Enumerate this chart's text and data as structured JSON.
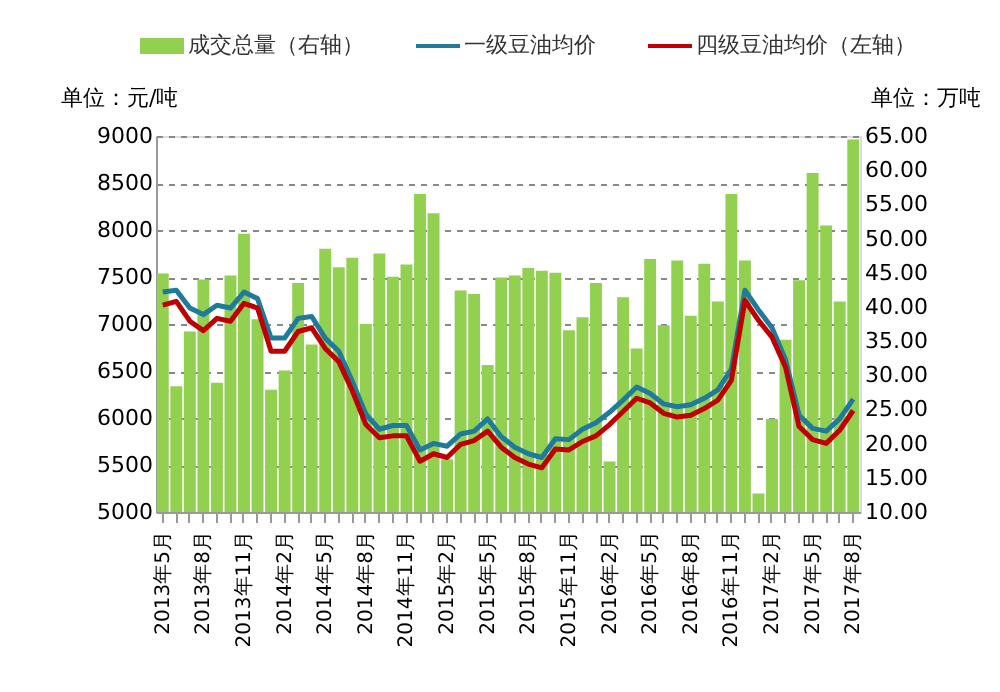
{
  "chart_data": {
    "type": "bar",
    "categories": [
      "2013年5月",
      null,
      null,
      "2013年8月",
      null,
      null,
      "2013年11月",
      null,
      null,
      "2014年2月",
      null,
      null,
      "2014年5月",
      null,
      null,
      "2014年8月",
      null,
      null,
      "2014年11月",
      null,
      null,
      "2015年2月",
      null,
      null,
      "2015年5月",
      null,
      null,
      "2015年8月",
      null,
      null,
      "2015年11月",
      null,
      null,
      "2016年2月",
      null,
      null,
      "2016年5月",
      null,
      null,
      "2016年8月",
      null,
      null,
      "2016年11月",
      null,
      null,
      "2017年2月",
      null,
      null,
      "2017年5月",
      null,
      null,
      "2017年8月"
    ],
    "series": [
      {
        "name": "成交总量（右轴）",
        "axis": "y2",
        "color": "#92d050",
        "values": [
          44.9,
          28.4,
          36.4,
          44.0,
          28.9,
          44.6,
          50.7,
          38.2,
          27.9,
          30.7,
          43.5,
          34.5,
          48.5,
          45.8,
          47.2,
          37.5,
          47.8,
          44.4,
          46.2,
          56.5,
          53.7,
          17.7,
          42.4,
          41.9,
          31.5,
          44.3,
          44.6,
          45.7,
          45.3,
          45.0,
          36.6,
          38.5,
          43.5,
          17.4,
          41.4,
          33.9,
          47.0,
          37.3,
          46.8,
          38.7,
          46.3,
          40.8,
          56.5,
          46.8,
          12.7,
          23.6,
          35.2,
          43.9,
          59.6,
          51.9,
          40.8,
          64.5
        ]
      },
      {
        "name": "一级豆油均价",
        "type": "line",
        "axis": "y",
        "color": "#1f7a9c",
        "values": [
          7340,
          7360,
          7170,
          7100,
          7200,
          7170,
          7340,
          7270,
          6850,
          6850,
          7060,
          7080,
          6850,
          6710,
          6390,
          6040,
          5880,
          5920,
          5920,
          5660,
          5730,
          5700,
          5830,
          5860,
          5990,
          5800,
          5690,
          5620,
          5580,
          5780,
          5770,
          5880,
          5950,
          6060,
          6190,
          6330,
          6260,
          6150,
          6120,
          6140,
          6210,
          6300,
          6520,
          7360,
          7150,
          6960,
          6620,
          6030,
          5890,
          5860,
          5990,
          6200
        ]
      },
      {
        "name": "四级豆油均价（左轴）",
        "type": "line",
        "axis": "y",
        "color": "#c00000",
        "values": [
          7200,
          7240,
          7030,
          6930,
          7060,
          7030,
          7220,
          7170,
          6710,
          6710,
          6920,
          6960,
          6740,
          6600,
          6290,
          5930,
          5790,
          5810,
          5810,
          5540,
          5620,
          5580,
          5720,
          5760,
          5860,
          5690,
          5580,
          5510,
          5470,
          5670,
          5660,
          5750,
          5810,
          5930,
          6070,
          6210,
          6160,
          6050,
          6010,
          6030,
          6100,
          6190,
          6400,
          7250,
          7040,
          6860,
          6540,
          5910,
          5770,
          5730,
          5870,
          6080
        ]
      }
    ],
    "ylabel": "单位：元/吨",
    "y2label": "单位：万吨",
    "ylim": [
      5000,
      9000
    ],
    "yticks": [
      5000,
      5500,
      6000,
      6500,
      7000,
      7500,
      8000,
      8500,
      9000
    ],
    "y2lim": [
      10,
      65
    ],
    "y2ticks": [
      {
        "value": 10,
        "label": "10.00"
      },
      {
        "value": 15,
        "label": "15.00"
      },
      {
        "value": 20,
        "label": "20.00"
      },
      {
        "value": 25,
        "label": "25.00"
      },
      {
        "value": 30,
        "label": "30.00"
      },
      {
        "value": 35,
        "label": "35.00"
      },
      {
        "value": 40,
        "label": "40.00"
      },
      {
        "value": 45,
        "label": "45.00"
      },
      {
        "value": 50,
        "label": "50.00"
      },
      {
        "value": 55,
        "label": "55.00"
      },
      {
        "value": 60,
        "label": "60.00"
      },
      {
        "value": 65,
        "label": "65.00"
      }
    ],
    "grid": "y",
    "legend": "top",
    "line_style": "solid",
    "marker": "none"
  }
}
